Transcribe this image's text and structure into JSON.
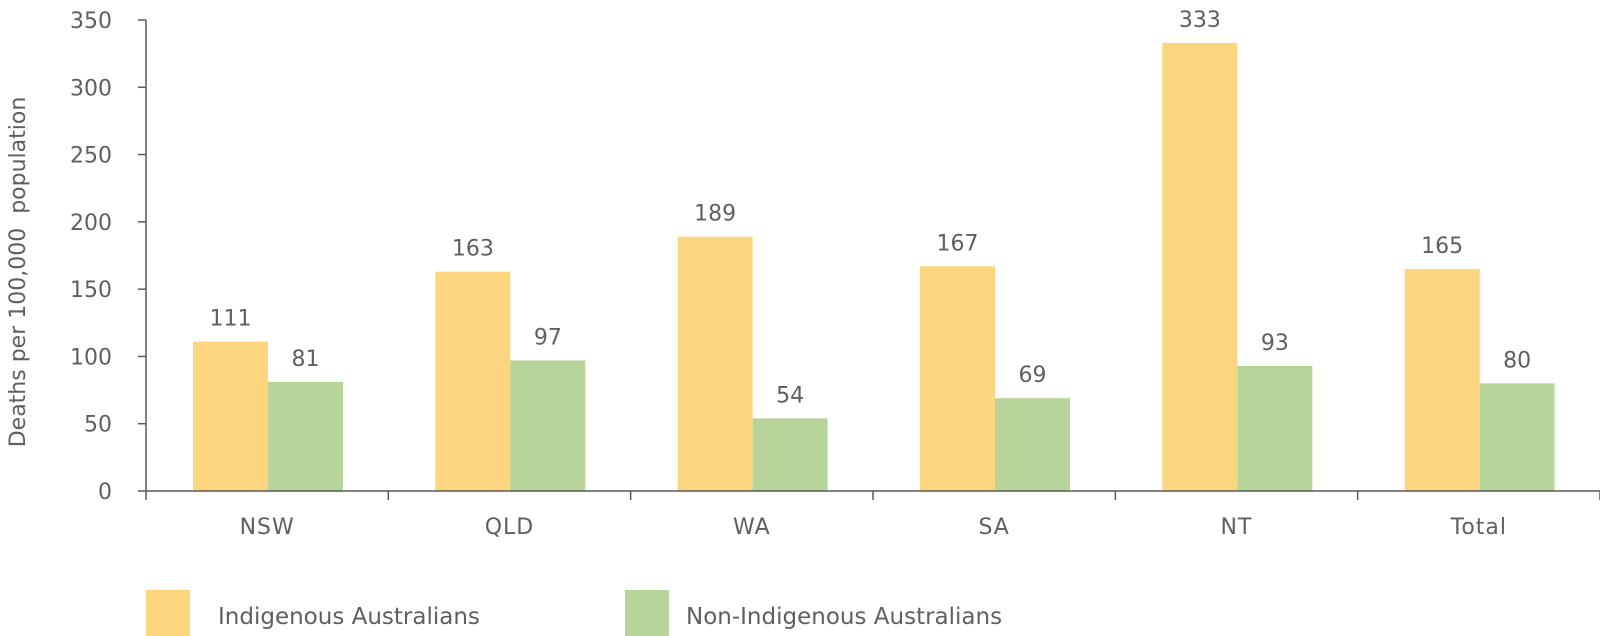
{
  "chart_data": {
    "type": "bar",
    "categories": [
      "NSW",
      "QLD",
      "WA",
      "SA",
      "NT",
      "Total"
    ],
    "series": [
      {
        "name": "Indigenous Australians",
        "values": [
          111,
          163,
          189,
          167,
          333,
          165
        ],
        "color": "#fdd57e"
      },
      {
        "name": "Non-Indigenous Australians",
        "values": [
          81,
          97,
          54,
          69,
          93,
          80
        ],
        "color": "#b7d49a"
      }
    ],
    "ylabel": "Deaths per 100,000  population",
    "ylim": [
      0,
      350
    ],
    "yticks": [
      0,
      50,
      100,
      150,
      200,
      250,
      300,
      350
    ],
    "grid": false,
    "legend_position": "bottom-left",
    "axis_color": "#595959",
    "text_color": "#5f5f5f"
  }
}
